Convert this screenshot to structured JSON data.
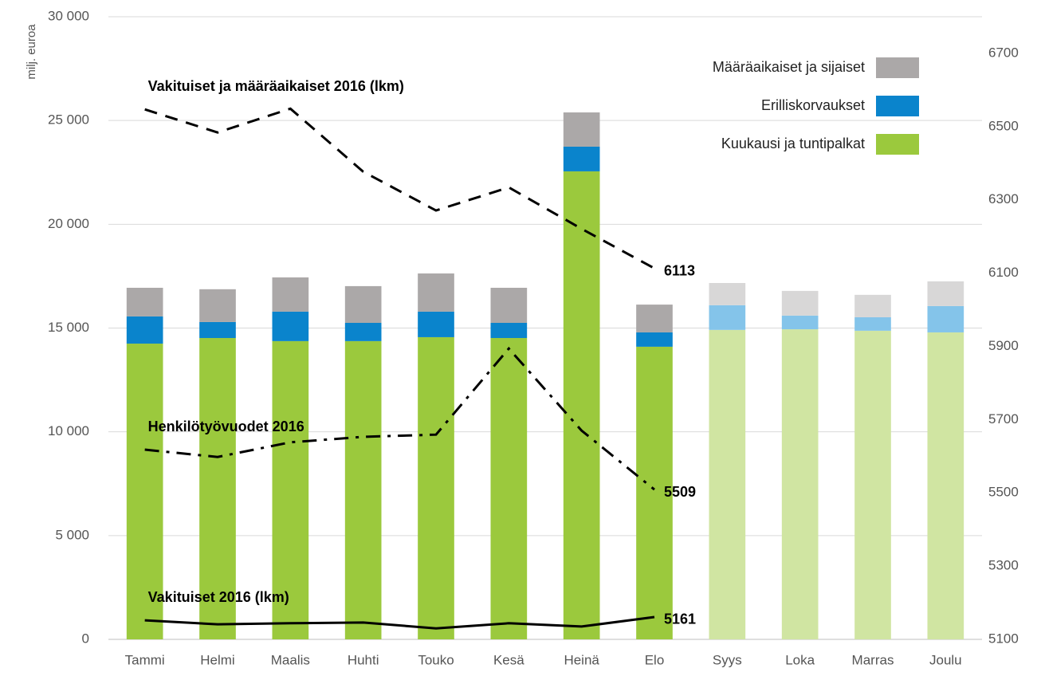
{
  "chart_data": {
    "type": "bar_line",
    "y_label": "milj. euroa",
    "categories": [
      "Tammi",
      "Helmi",
      "Maalis",
      "Huhti",
      "Touko",
      "Kesä",
      "Heinä",
      "Elo",
      "Syys",
      "Loka",
      "Marras",
      "Joulu"
    ],
    "ylim": [
      0,
      30000
    ],
    "yticks": [
      {
        "value": 0,
        "label": "0"
      },
      {
        "value": 5000,
        "label": "5 000"
      },
      {
        "value": 10000,
        "label": "10 000"
      },
      {
        "value": 15000,
        "label": "15 000"
      },
      {
        "value": 20000,
        "label": "20 000"
      },
      {
        "value": 25000,
        "label": "25 000"
      },
      {
        "value": 30000,
        "label": "30 000"
      }
    ],
    "y2lim": [
      5100,
      6800
    ],
    "y2ticks": [
      5100,
      5300,
      5500,
      5700,
      5900,
      6100,
      6300,
      6500,
      6700
    ],
    "grid": true,
    "legend": "upper right",
    "series": [
      {
        "name": "Kuukausi ja tuntipalkat",
        "type": "bar",
        "color": "#9bc93d",
        "colors": [
          "#9bc93d",
          "#9bc93d",
          "#9bc93d",
          "#9bc93d",
          "#9bc93d",
          "#9bc93d",
          "#9bc93d",
          "#9bc93d",
          "#d0e5a2",
          "#d0e5a2",
          "#d0e5a2",
          "#d0e5a2"
        ],
        "values": [
          14250,
          14520,
          14370,
          14370,
          14560,
          14520,
          22550,
          14100,
          14910,
          14940,
          14870,
          14790
        ]
      },
      {
        "name": "Erilliskorvaukset",
        "type": "bar",
        "color": "#0a84cc",
        "colors": [
          "#0a84cc",
          "#0a84cc",
          "#0a84cc",
          "#0a84cc",
          "#0a84cc",
          "#0a84cc",
          "#0a84cc",
          "#0a84cc",
          "#84c4ea",
          "#84c4ea",
          "#84c4ea",
          "#84c4ea"
        ],
        "values": [
          1310,
          770,
          1420,
          880,
          1230,
          730,
          1190,
          690,
          1190,
          660,
          650,
          1270
        ]
      },
      {
        "name": "Määräaikaiset ja sijaiset",
        "type": "bar",
        "color": "#aba8a8",
        "colors": [
          "#aba8a8",
          "#aba8a8",
          "#aba8a8",
          "#aba8a8",
          "#aba8a8",
          "#aba8a8",
          "#aba8a8",
          "#aba8a8",
          "#d8d7d7",
          "#d8d7d7",
          "#d8d7d7",
          "#d8d7d7"
        ],
        "values": [
          1380,
          1580,
          1650,
          1770,
          1840,
          1690,
          1650,
          1340,
          1070,
          1190,
          1080,
          1190
        ]
      },
      {
        "name": "Vakituiset ja määräaikaiset 2016 (lkm)",
        "type": "line",
        "axis": "y2",
        "color": "#000000",
        "line_style": "dashed",
        "values": [
          6547,
          6484,
          6549,
          6377,
          6271,
          6334,
          6221,
          6113,
          null,
          null,
          null,
          null
        ]
      },
      {
        "name": "Henkilötyövuodet 2016",
        "type": "line",
        "axis": "y2",
        "color": "#000000",
        "line_style": "dashdot",
        "values": [
          5618,
          5598,
          5638,
          5653,
          5659,
          5894,
          5670,
          5509,
          null,
          null,
          null,
          null
        ]
      },
      {
        "name": "Vakituiset 2016 (lkm)",
        "type": "line",
        "axis": "y2",
        "color": "#000000",
        "line_style": "solid",
        "values": [
          5152,
          5141,
          5144,
          5146,
          5130,
          5144,
          5135,
          5161,
          null,
          null,
          null,
          null
        ]
      }
    ]
  }
}
